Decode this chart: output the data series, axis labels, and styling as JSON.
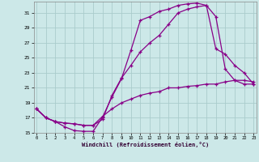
{
  "xlabel": "Windchill (Refroidissement éolien,°C)",
  "bg_color": "#cce8e8",
  "grid_color": "#aacccc",
  "line_color": "#880088",
  "line1_x": [
    0,
    1,
    2,
    3,
    4,
    5,
    6,
    7,
    8,
    9,
    10,
    11,
    12,
    13,
    14,
    15,
    16,
    17,
    18,
    19,
    20,
    21,
    22,
    23
  ],
  "line1_y": [
    18.2,
    17.0,
    16.5,
    15.8,
    15.3,
    15.2,
    15.2,
    17.1,
    19.8,
    22.2,
    26.0,
    30.0,
    30.5,
    31.2,
    31.5,
    32.0,
    32.2,
    32.3,
    32.0,
    30.5,
    23.5,
    22.0,
    21.5,
    21.5
  ],
  "line2_x": [
    0,
    1,
    2,
    3,
    4,
    5,
    6,
    7,
    8,
    9,
    10,
    11,
    12,
    13,
    14,
    15,
    16,
    17,
    18,
    19,
    20,
    21,
    22,
    23
  ],
  "line2_y": [
    18.2,
    17.0,
    16.5,
    16.3,
    16.2,
    16.0,
    16.0,
    16.8,
    20.0,
    22.3,
    24.0,
    25.8,
    27.0,
    28.0,
    29.5,
    31.0,
    31.5,
    31.8,
    32.0,
    26.2,
    25.5,
    24.0,
    23.0,
    21.5
  ],
  "line3_x": [
    0,
    1,
    2,
    3,
    4,
    5,
    6,
    7,
    8,
    9,
    10,
    11,
    12,
    13,
    14,
    15,
    16,
    17,
    18,
    19,
    20,
    21,
    22,
    23
  ],
  "line3_y": [
    18.2,
    17.0,
    16.5,
    16.3,
    16.2,
    16.0,
    16.0,
    17.2,
    18.2,
    19.0,
    19.5,
    20.0,
    20.3,
    20.5,
    21.0,
    21.0,
    21.2,
    21.3,
    21.5,
    21.5,
    21.8,
    22.0,
    22.0,
    21.8
  ],
  "xlim": [
    0,
    23
  ],
  "ylim": [
    15,
    32
  ],
  "yticks": [
    15,
    17,
    19,
    21,
    23,
    25,
    27,
    29,
    31
  ],
  "xticks": [
    0,
    1,
    2,
    3,
    4,
    5,
    6,
    7,
    8,
    9,
    10,
    11,
    12,
    13,
    14,
    15,
    16,
    17,
    18,
    19,
    20,
    21,
    22,
    23
  ]
}
